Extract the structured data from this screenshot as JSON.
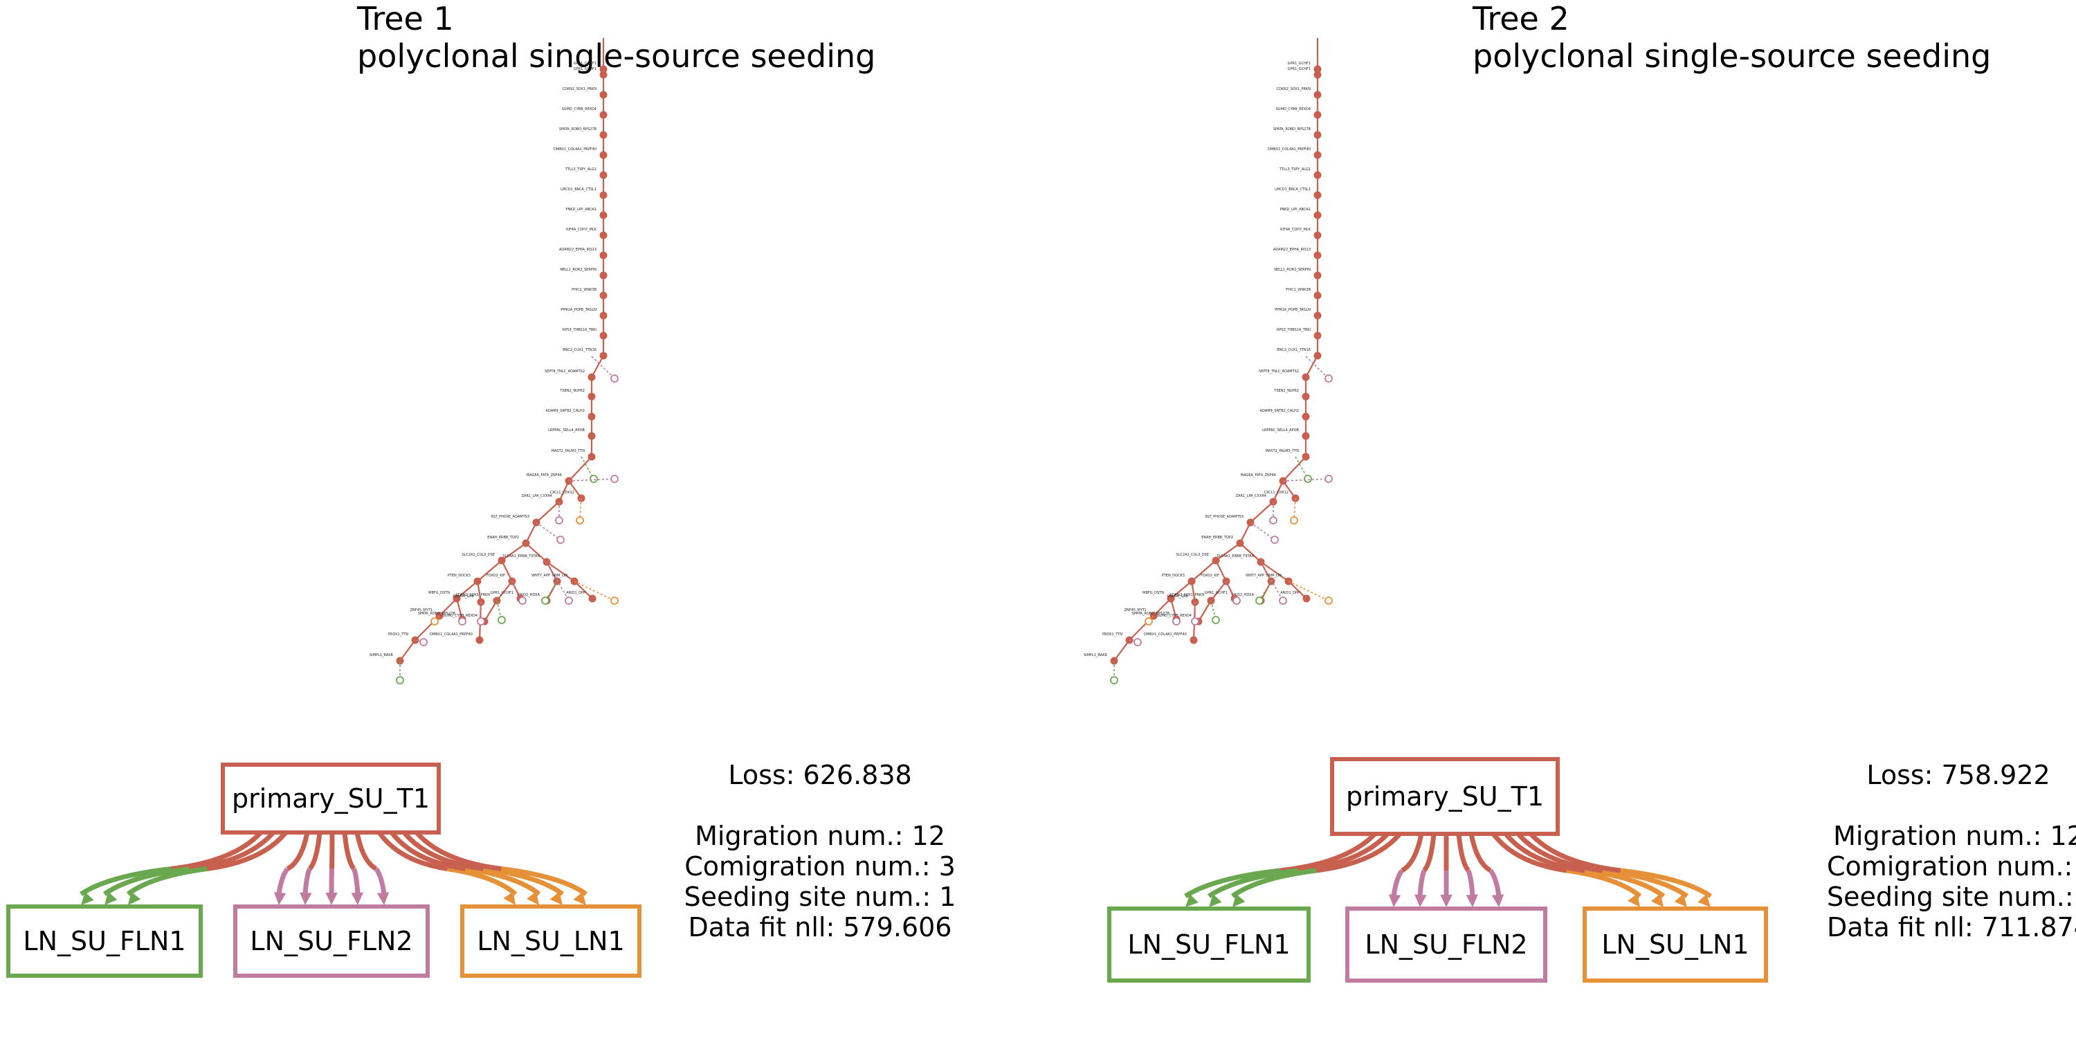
{
  "colors": {
    "primary": "#c8604f",
    "fln1": "#6aa84f",
    "fln2": "#c27ba0",
    "ln1": "#e69138",
    "tree_edge": "#c8604f"
  },
  "panels": [
    {
      "tree_title": "Tree 1",
      "pattern": "polyclonal single-source seeding",
      "sites": {
        "primary": "primary_SU_T1",
        "fln1": "LN_SU_FLN1",
        "fln2": "LN_SU_FLN2",
        "ln1": "LN_SU_LN1"
      },
      "stats": {
        "loss": "Loss: 626.838",
        "migration": "Migration num.: 12",
        "comigration": "Comigration num.: 3",
        "seeding": "Seeding site num.: 1",
        "datafit": "Data fit nll: 579.606"
      },
      "migration_arrows": {
        "fln1": 3,
        "fln2": 5,
        "ln1": 4
      }
    },
    {
      "tree_title": "Tree 2",
      "pattern": "polyclonal single-source seeding",
      "sites": {
        "primary": "primary_SU_T1",
        "fln1": "LN_SU_FLN1",
        "fln2": "LN_SU_FLN2",
        "ln1": "LN_SU_LN1"
      },
      "stats": {
        "loss": "Loss: 758.922",
        "migration": "Migration num.: 12",
        "comigration": "Comigration num.: 3",
        "seeding": "Seeding site num.: 1",
        "datafit": "Data fit nll: 711.874"
      },
      "migration_arrows": {
        "fln1": 3,
        "fln2": 5,
        "ln1": 4
      }
    }
  ],
  "tree_node_labels": [
    "GPR1_GCHF1",
    "CDKN2_SOX1_PRKN",
    "SUMO_CYBB_REXO4",
    "SPATA_ROBO_RPS27B",
    "DMBX1_COL4A1_PRPF40",
    "TTLL3_TSPY_ALG1",
    "LMCD1_BRCA_CTSL1",
    "PNKD_LIPI_ABCA1",
    "KIF4A_CDH7_MLK",
    "ADAM22_EPHA_IRS13",
    "NELL1_ROR2_SERPIN",
    "FHIC1_WNK3B",
    "PPM1A_POPB_TAGLN",
    "RPS3_THBS1A_TBKI",
    "BNC2_CUX1_TTN16",
    "SEPT8_TNLC_ADAMTS2",
    "TSEN2_NUP62",
    "ADAM9_SNTB2_CALH2",
    "LRPPRC_SELL4_APOB",
    "MAST2_PALM3_TTN",
    "MAGEA_FAT4_ZNF46",
    "ZAR1_LPA_CXXR4",
    "CXCL1_CDK12",
    "BLT_PHOSE_ADAMTS3",
    "ENAH_ERBB_TOP2",
    "SLC2A1_CUL3_DSE",
    "SLC4A1_ERBB_TSTAX",
    "PTEN_DOCK3",
    "FOXO2_KIF",
    "MBFG_DSTN",
    "GOLGA_CRB",
    "ZNF45_MYT1",
    "PROX1_TTN",
    "SIMPL1_BAKR",
    "WNT7_APP",
    "TRIM_LIN",
    "ARID1_DPP",
    "GRID2_HOXA"
  ]
}
